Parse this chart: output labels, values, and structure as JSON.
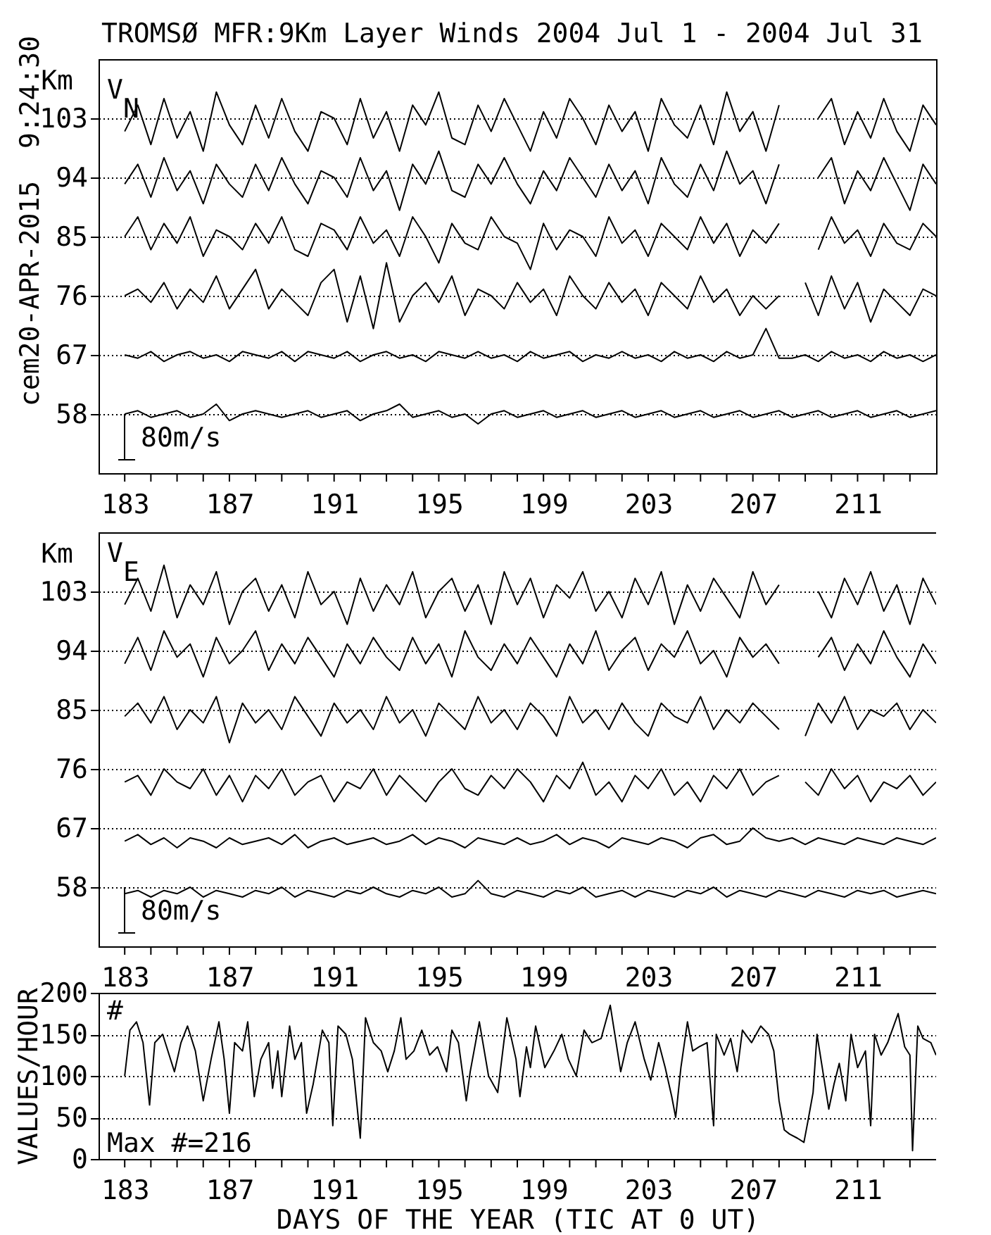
{
  "chart_data": [
    {
      "type": "line",
      "title": "TROMSØ MFR:9Km Layer Winds 2004 Jul  1 - 2004 Jul 31",
      "ylabel": "Km",
      "annotations": [
        "cem20-APR-2015  9:24:30",
        "V$_{N}$",
        "80m/s"
      ],
      "x": [
        183,
        183.5,
        184,
        184.5,
        185,
        185.5,
        186,
        186.5,
        187,
        187.5,
        188,
        188.5,
        189,
        189.5,
        190,
        190.5,
        191,
        191.5,
        192,
        192.5,
        193,
        193.5,
        194,
        194.5,
        195,
        195.5,
        196,
        196.5,
        197,
        197.5,
        198,
        198.5,
        199,
        199.5,
        200,
        200.5,
        201,
        201.5,
        202,
        202.5,
        203,
        203.5,
        204,
        204.5,
        205,
        205.5,
        206,
        206.5,
        207,
        207.5,
        208,
        208.5,
        209,
        209.5,
        210,
        210.5,
        211,
        211.5,
        212,
        212.5,
        213,
        213.5,
        214
      ],
      "xlim": [
        182,
        214
      ],
      "xticks": [
        183,
        {
          "value": 184,
          "label": null
        },
        {
          "value": 185,
          "label": null
        },
        {
          "value": 186,
          "label": null
        },
        187,
        {
          "value": 188,
          "label": null
        },
        {
          "value": 189,
          "label": null
        },
        {
          "value": 190,
          "label": null
        },
        191,
        {
          "value": 192,
          "label": null
        },
        {
          "value": 193,
          "label": null
        },
        {
          "value": 194,
          "label": null
        },
        195,
        {
          "value": 196,
          "label": null
        },
        {
          "value": 197,
          "label": null
        },
        {
          "value": 198,
          "label": null
        },
        199,
        {
          "value": 200,
          "label": null
        },
        {
          "value": 201,
          "label": null
        },
        {
          "value": 202,
          "label": null
        },
        203,
        {
          "value": 204,
          "label": null
        },
        {
          "value": 205,
          "label": null
        },
        {
          "value": 206,
          "label": null
        },
        207,
        {
          "value": 208,
          "label": null
        },
        {
          "value": 209,
          "label": null
        },
        {
          "value": 210,
          "label": null
        },
        211,
        {
          "value": 212,
          "label": null
        },
        {
          "value": 213,
          "label": null
        }
      ],
      "ylim": [
        49,
        112
      ],
      "yticks": [
        58,
        67,
        76,
        85,
        94,
        103
      ],
      "grid": "y",
      "series": [
        {
          "color": "#000000",
          "values": [
            101,
            105,
            99,
            106,
            100,
            104,
            98,
            107,
            102,
            99,
            105,
            100,
            106,
            101,
            98,
            104,
            103,
            99,
            106,
            100,
            104,
            98,
            105,
            102,
            107,
            100,
            99,
            105,
            101,
            106,
            102,
            98,
            104,
            100,
            106,
            103,
            99,
            105,
            101,
            104,
            98,
            106,
            102,
            100,
            105,
            99,
            107,
            101,
            104,
            98,
            105,
            null,
            null,
            103,
            106,
            99,
            104,
            100,
            106,
            101,
            98,
            105,
            102
          ]
        },
        {
          "color": "#000000",
          "values": [
            93,
            96,
            91,
            97,
            92,
            95,
            90,
            96,
            93,
            91,
            96,
            92,
            97,
            93,
            90,
            95,
            94,
            91,
            97,
            92,
            95,
            89,
            96,
            93,
            98,
            92,
            91,
            96,
            93,
            97,
            93,
            90,
            95,
            92,
            97,
            94,
            91,
            96,
            92,
            95,
            90,
            97,
            93,
            91,
            96,
            92,
            98,
            93,
            95,
            90,
            96,
            null,
            null,
            94,
            97,
            90,
            95,
            92,
            97,
            93,
            89,
            96,
            93
          ]
        },
        {
          "color": "#000000",
          "values": [
            85,
            88,
            83,
            87,
            84,
            88,
            82,
            86,
            85,
            83,
            87,
            84,
            88,
            83,
            82,
            87,
            86,
            83,
            88,
            84,
            86,
            82,
            88,
            85,
            81,
            87,
            84,
            83,
            88,
            85,
            84,
            80,
            87,
            83,
            86,
            85,
            82,
            88,
            84,
            86,
            82,
            87,
            85,
            83,
            88,
            84,
            87,
            82,
            86,
            84,
            87,
            null,
            null,
            83,
            88,
            84,
            86,
            82,
            87,
            84,
            83,
            87,
            85
          ]
        },
        {
          "color": "#000000",
          "values": [
            76,
            77,
            75,
            78,
            74,
            77,
            75,
            79,
            74,
            77,
            80,
            74,
            77,
            75,
            73,
            78,
            80,
            72,
            79,
            71,
            81,
            72,
            76,
            78,
            75,
            79,
            73,
            77,
            76,
            74,
            78,
            75,
            77,
            73,
            79,
            76,
            74,
            78,
            75,
            77,
            73,
            78,
            76,
            74,
            79,
            75,
            77,
            73,
            76,
            74,
            76,
            null,
            78,
            73,
            79,
            74,
            78,
            72,
            77,
            75,
            73,
            77,
            76
          ]
        },
        {
          "color": "#000000",
          "values": [
            67,
            66.5,
            67.5,
            66,
            67,
            67.5,
            66.5,
            67,
            66,
            67.5,
            67,
            66.5,
            67.5,
            66,
            67.5,
            67,
            66.5,
            67.5,
            66,
            67,
            67.5,
            66.5,
            67,
            66,
            67.5,
            67,
            66.5,
            67.5,
            66.5,
            67,
            66,
            67.5,
            66.5,
            67,
            67.5,
            66,
            67,
            66.5,
            67.5,
            66.5,
            67,
            66,
            67.5,
            66.5,
            67,
            66,
            67.5,
            66.5,
            67,
            71,
            66.5,
            66.5,
            67,
            66,
            67.5,
            66.5,
            67,
            66,
            67.5,
            66.5,
            67,
            66,
            67
          ]
        },
        {
          "color": "#000000",
          "values": [
            58,
            58.5,
            57.5,
            58,
            58.5,
            57.5,
            58,
            59.5,
            57,
            58,
            58.5,
            58,
            57.5,
            58,
            58.5,
            57.5,
            58,
            58.5,
            57,
            58,
            58.5,
            59.5,
            57.5,
            58,
            58.5,
            57.5,
            58,
            56.5,
            58,
            58.5,
            57.5,
            58,
            58.5,
            57.5,
            58,
            58.5,
            57.5,
            58,
            58.5,
            57.5,
            58,
            58.5,
            57.5,
            58,
            58.5,
            57.5,
            58,
            58.5,
            57.5,
            58,
            58.5,
            57.5,
            58,
            58.5,
            57.5,
            58,
            58.5,
            57.5,
            58,
            58.5,
            57.5,
            58,
            58.5
          ]
        }
      ]
    },
    {
      "type": "line",
      "ylabel": "Km",
      "annotations": [
        "V$_{E}$",
        "80m/s"
      ],
      "x": [
        183,
        183.5,
        184,
        184.5,
        185,
        185.5,
        186,
        186.5,
        187,
        187.5,
        188,
        188.5,
        189,
        189.5,
        190,
        190.5,
        191,
        191.5,
        192,
        192.5,
        193,
        193.5,
        194,
        194.5,
        195,
        195.5,
        196,
        196.5,
        197,
        197.5,
        198,
        198.5,
        199,
        199.5,
        200,
        200.5,
        201,
        201.5,
        202,
        202.5,
        203,
        203.5,
        204,
        204.5,
        205,
        205.5,
        206,
        206.5,
        207,
        207.5,
        208,
        208.5,
        209,
        209.5,
        210,
        210.5,
        211,
        211.5,
        212,
        212.5,
        213,
        213.5,
        214
      ],
      "xlim": [
        182,
        214
      ],
      "xticks": [
        183,
        {
          "value": 184,
          "label": null
        },
        {
          "value": 185,
          "label": null
        },
        {
          "value": 186,
          "label": null
        },
        187,
        {
          "value": 188,
          "label": null
        },
        {
          "value": 189,
          "label": null
        },
        {
          "value": 190,
          "label": null
        },
        191,
        {
          "value": 192,
          "label": null
        },
        {
          "value": 193,
          "label": null
        },
        {
          "value": 194,
          "label": null
        },
        195,
        {
          "value": 196,
          "label": null
        },
        {
          "value": 197,
          "label": null
        },
        {
          "value": 198,
          "label": null
        },
        199,
        {
          "value": 200,
          "label": null
        },
        {
          "value": 201,
          "label": null
        },
        {
          "value": 202,
          "label": null
        },
        203,
        {
          "value": 204,
          "label": null
        },
        {
          "value": 205,
          "label": null
        },
        {
          "value": 206,
          "label": null
        },
        207,
        {
          "value": 208,
          "label": null
        },
        {
          "value": 209,
          "label": null
        },
        {
          "value": 210,
          "label": null
        },
        211,
        {
          "value": 212,
          "label": null
        },
        {
          "value": 213,
          "label": null
        }
      ],
      "ylim": [
        49,
        112
      ],
      "yticks": [
        58,
        67,
        76,
        85,
        94,
        103
      ],
      "grid": "y",
      "series": [
        {
          "color": "#000000",
          "values": [
            101,
            105,
            100,
            107,
            99,
            104,
            101,
            106,
            98,
            103,
            105,
            100,
            104,
            99,
            106,
            101,
            103,
            98,
            105,
            100,
            104,
            101,
            106,
            99,
            103,
            105,
            100,
            104,
            98,
            106,
            101,
            105,
            99,
            104,
            102,
            106,
            100,
            103,
            99,
            105,
            101,
            106,
            98,
            104,
            100,
            105,
            102,
            99,
            106,
            101,
            104,
            null,
            null,
            103,
            99,
            105,
            101,
            106,
            100,
            104,
            98,
            105,
            101
          ]
        },
        {
          "color": "#000000",
          "values": [
            92,
            96,
            91,
            97,
            93,
            95,
            90,
            96,
            92,
            94,
            97,
            91,
            95,
            92,
            96,
            93,
            90,
            95,
            92,
            96,
            93,
            91,
            96,
            92,
            95,
            90,
            97,
            93,
            91,
            95,
            92,
            96,
            93,
            90,
            95,
            92,
            97,
            91,
            94,
            96,
            91,
            95,
            93,
            97,
            92,
            94,
            90,
            96,
            93,
            95,
            92,
            null,
            null,
            93,
            96,
            91,
            95,
            92,
            97,
            93,
            90,
            95,
            92
          ]
        },
        {
          "color": "#000000",
          "values": [
            84,
            86,
            83,
            87,
            82,
            85,
            83,
            87,
            80,
            86,
            83,
            85,
            82,
            87,
            84,
            81,
            86,
            83,
            85,
            82,
            87,
            83,
            85,
            81,
            86,
            84,
            82,
            87,
            83,
            85,
            82,
            86,
            84,
            81,
            87,
            83,
            85,
            82,
            86,
            83,
            81,
            86,
            84,
            83,
            87,
            82,
            85,
            83,
            86,
            84,
            82,
            null,
            81,
            86,
            83,
            87,
            82,
            85,
            84,
            86,
            82,
            85,
            83
          ]
        },
        {
          "color": "#000000",
          "values": [
            74,
            75,
            72,
            76,
            74,
            73,
            76,
            72,
            75,
            71,
            75,
            73,
            76,
            72,
            74,
            75,
            71,
            74,
            73,
            76,
            72,
            75,
            73,
            71,
            74,
            76,
            73,
            72,
            75,
            73,
            76,
            74,
            71,
            75,
            73,
            77,
            72,
            74,
            71,
            75,
            73,
            76,
            72,
            74,
            71,
            75,
            73,
            76,
            72,
            74,
            75,
            null,
            74,
            72,
            76,
            73,
            75,
            71,
            74,
            73,
            75,
            72,
            74
          ]
        },
        {
          "color": "#000000",
          "values": [
            65,
            66,
            64.5,
            65.5,
            64,
            65.5,
            65,
            64,
            65.5,
            64.5,
            65,
            65.5,
            64.5,
            66,
            64,
            65,
            65.5,
            64.5,
            65,
            65.5,
            64.5,
            65,
            66,
            64.5,
            65.5,
            65,
            64,
            65.5,
            65,
            64.5,
            65.5,
            64.5,
            65,
            66,
            64.5,
            65.5,
            65,
            64,
            65.5,
            65,
            64.5,
            65.5,
            65,
            64,
            65.5,
            66,
            64.5,
            65,
            67,
            65.5,
            65,
            65.5,
            64.5,
            65.5,
            65,
            64.5,
            65.5,
            65,
            64.5,
            65.5,
            65,
            64.5,
            65.5
          ]
        },
        {
          "color": "#000000",
          "values": [
            57,
            57.5,
            56.5,
            57.5,
            57,
            58,
            56.5,
            57.5,
            57,
            56.5,
            57.5,
            57,
            58,
            56.5,
            57.5,
            57,
            56.5,
            57.5,
            57,
            58,
            57,
            56.5,
            57.5,
            57,
            58,
            56.5,
            57,
            59,
            57,
            56.5,
            57.5,
            57,
            56.5,
            57.5,
            57,
            58,
            56.5,
            57,
            57.5,
            56.5,
            57.5,
            57,
            56.5,
            57.5,
            57,
            58,
            56.5,
            57.5,
            57,
            56.5,
            57.5,
            57,
            56.5,
            57.5,
            57,
            56.5,
            57.5,
            57,
            57.5,
            56.5,
            57,
            57.5,
            57
          ]
        }
      ]
    },
    {
      "type": "line",
      "xlabel": "DAYS OF THE YEAR (TIC AT 0 UT)",
      "ylabel": "VALUES/HOUR",
      "annotations": [
        "#",
        "Max #=216"
      ],
      "x": [
        183,
        183.2,
        183.45,
        183.7,
        183.95,
        184.15,
        184.45,
        184.7,
        184.9,
        185.15,
        185.4,
        185.7,
        186,
        186.3,
        186.6,
        186.8,
        187,
        187.2,
        187.5,
        187.7,
        187.95,
        188.2,
        188.5,
        188.65,
        188.85,
        189,
        189.3,
        189.5,
        189.75,
        189.95,
        190.2,
        190.55,
        190.8,
        190.95,
        191.15,
        191.45,
        191.7,
        192,
        192.2,
        192.5,
        192.8,
        193.05,
        193.3,
        193.55,
        193.75,
        194.05,
        194.35,
        194.65,
        194.95,
        195.3,
        195.5,
        195.75,
        196.05,
        196.2,
        196.55,
        196.9,
        197.25,
        197.6,
        197.95,
        198.1,
        198.35,
        198.5,
        198.7,
        199.05,
        199.4,
        199.7,
        199.95,
        200.25,
        200.55,
        200.85,
        201.2,
        201.55,
        201.95,
        202.2,
        202.5,
        202.85,
        203.1,
        203.4,
        203.65,
        203.9,
        204.05,
        204.25,
        204.5,
        204.7,
        204.95,
        205.25,
        205.5,
        205.6,
        205.9,
        206.15,
        206.4,
        206.6,
        206.95,
        207.3,
        207.6,
        207.8,
        208,
        208.2,
        208.4,
        208.7,
        208.95,
        209.1,
        209.3,
        209.45,
        209.65,
        209.9,
        210.1,
        210.3,
        210.55,
        210.75,
        211,
        211.3,
        211.5,
        211.65,
        211.9,
        212.15,
        212.55,
        212.8,
        213,
        213.1,
        213.3,
        213.5,
        213.8,
        214
      ],
      "xlim": [
        182,
        214
      ],
      "xticks": [
        183,
        {
          "value": 184,
          "label": null
        },
        {
          "value": 185,
          "label": null
        },
        {
          "value": 186,
          "label": null
        },
        187,
        {
          "value": 188,
          "label": null
        },
        {
          "value": 189,
          "label": null
        },
        {
          "value": 190,
          "label": null
        },
        191,
        {
          "value": 192,
          "label": null
        },
        {
          "value": 193,
          "label": null
        },
        {
          "value": 194,
          "label": null
        },
        195,
        {
          "value": 196,
          "label": null
        },
        {
          "value": 197,
          "label": null
        },
        {
          "value": 198,
          "label": null
        },
        199,
        {
          "value": 200,
          "label": null
        },
        {
          "value": 201,
          "label": null
        },
        {
          "value": 202,
          "label": null
        },
        203,
        {
          "value": 204,
          "label": null
        },
        {
          "value": 205,
          "label": null
        },
        {
          "value": 206,
          "label": null
        },
        207,
        {
          "value": 208,
          "label": null
        },
        {
          "value": 209,
          "label": null
        },
        {
          "value": 210,
          "label": null
        },
        211,
        {
          "value": 212,
          "label": null
        },
        {
          "value": 213,
          "label": null
        }
      ],
      "ylim": [
        0,
        200
      ],
      "yticks": [
        0,
        50,
        100,
        150,
        200
      ],
      "grid": "y",
      "series": [
        {
          "color": "#000000",
          "values": [
            100,
            155,
            165,
            140,
            65,
            140,
            150,
            125,
            105,
            140,
            160,
            130,
            70,
            120,
            165,
            120,
            55,
            140,
            130,
            165,
            75,
            120,
            140,
            85,
            130,
            75,
            160,
            120,
            140,
            55,
            90,
            155,
            140,
            40,
            160,
            150,
            120,
            25,
            170,
            140,
            130,
            105,
            130,
            170,
            120,
            130,
            155,
            125,
            135,
            105,
            155,
            140,
            70,
            105,
            165,
            100,
            80,
            170,
            120,
            75,
            135,
            110,
            160,
            110,
            130,
            150,
            120,
            100,
            155,
            140,
            145,
            185,
            105,
            140,
            165,
            120,
            95,
            140,
            110,
            75,
            50,
            110,
            165,
            130,
            135,
            140,
            40,
            150,
            125,
            145,
            105,
            155,
            140,
            160,
            150,
            130,
            70,
            35,
            30,
            25,
            20,
            45,
            80,
            150,
            110,
            60,
            90,
            115,
            70,
            150,
            110,
            130,
            40,
            150,
            125,
            140,
            175,
            135,
            125,
            10,
            160,
            145,
            140,
            125
          ]
        }
      ]
    }
  ]
}
